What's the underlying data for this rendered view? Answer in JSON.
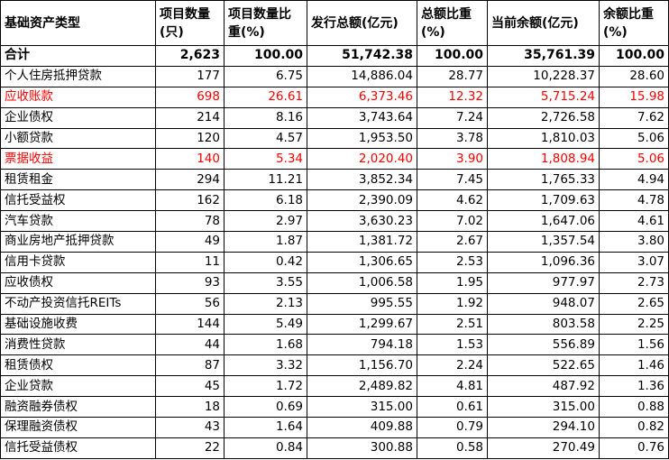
{
  "table": {
    "headers": [
      "基础资产类型",
      "项目数量(只)",
      "项目数量比重(%)",
      "发行总额(亿元)",
      "总额比重(%)",
      "当前余额(亿元)",
      "余额比重(%)"
    ],
    "total": [
      "合计",
      "2,623",
      "100.00",
      "51,742.38",
      "100.00",
      "35,761.39",
      "100.00"
    ],
    "rows": [
      [
        "个人住房抵押贷款",
        "177",
        "6.75",
        "14,886.04",
        "28.77",
        "10,228.37",
        "28.60"
      ],
      [
        "应收账款",
        "698",
        "26.61",
        "6,373.46",
        "12.32",
        "5,715.24",
        "15.98"
      ],
      [
        "企业债权",
        "214",
        "8.16",
        "3,743.64",
        "7.24",
        "2,726.58",
        "7.62"
      ],
      [
        "小额贷款",
        "120",
        "4.57",
        "1,953.50",
        "3.78",
        "1,810.03",
        "5.06"
      ],
      [
        "票据收益",
        "140",
        "5.34",
        "2,020.40",
        "3.90",
        "1,808.94",
        "5.06"
      ],
      [
        "租赁租金",
        "294",
        "11.21",
        "3,852.34",
        "7.45",
        "1,765.33",
        "4.94"
      ],
      [
        "信托受益权",
        "162",
        "6.18",
        "2,390.09",
        "4.62",
        "1,709.63",
        "4.78"
      ],
      [
        "汽车贷款",
        "78",
        "2.97",
        "3,630.23",
        "7.02",
        "1,647.06",
        "4.61"
      ],
      [
        "商业房地产抵押贷款",
        "49",
        "1.87",
        "1,381.72",
        "2.67",
        "1,357.54",
        "3.80"
      ],
      [
        "信用卡贷款",
        "11",
        "0.42",
        "1,306.65",
        "2.53",
        "1,096.36",
        "3.07"
      ],
      [
        "应收债权",
        "93",
        "3.55",
        "1,006.58",
        "1.95",
        "977.97",
        "2.73"
      ],
      [
        "不动产投资信托REITs",
        "56",
        "2.13",
        "995.55",
        "1.92",
        "948.07",
        "2.65"
      ],
      [
        "基础设施收费",
        "144",
        "5.49",
        "1,299.67",
        "2.51",
        "803.58",
        "2.25"
      ],
      [
        "消费性贷款",
        "44",
        "1.68",
        "794.18",
        "1.53",
        "556.89",
        "1.56"
      ],
      [
        "租赁债权",
        "87",
        "3.32",
        "1,156.70",
        "2.24",
        "522.65",
        "1.46"
      ],
      [
        "企业贷款",
        "45",
        "1.72",
        "2,489.82",
        "4.81",
        "487.92",
        "1.36"
      ],
      [
        "融资融券债权",
        "18",
        "0.69",
        "315.00",
        "0.61",
        "315.00",
        "0.88"
      ],
      [
        "保理融资债权",
        "43",
        "1.64",
        "409.88",
        "0.79",
        "294.10",
        "0.82"
      ],
      [
        "信托受益债权",
        "22",
        "0.84",
        "300.88",
        "0.58",
        "270.49",
        "0.76"
      ]
    ],
    "highlight_color": "#ff0000",
    "highlighted_rows": [
      "应收账款",
      "票据收益"
    ]
  }
}
